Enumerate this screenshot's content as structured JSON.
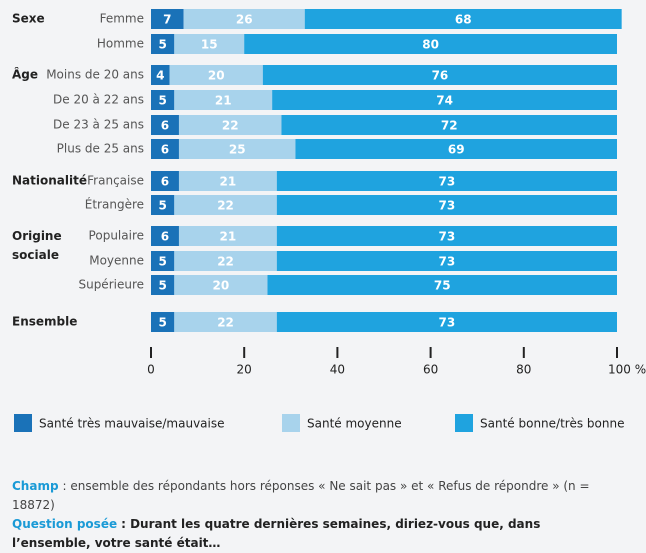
{
  "chart_data": {
    "type": "stacked-bar-horizontal",
    "groups": [
      {
        "label": "Sexe",
        "categories": [
          "Femme",
          "Homme"
        ]
      },
      {
        "label": "Âge",
        "categories": [
          "Moins de 20 ans",
          "De 20 à 22 ans",
          "De 23 à 25 ans",
          "Plus de 25 ans"
        ]
      },
      {
        "label": "Nationalité",
        "categories": [
          "Française",
          "Étrangère"
        ]
      },
      {
        "label": "Origine sociale",
        "categories": [
          "Populaire",
          "Moyenne",
          "Supérieure"
        ]
      },
      {
        "label": "Ensemble",
        "categories": [
          null
        ]
      }
    ],
    "series": [
      {
        "name": "Santé très mauvaise/mauvaise",
        "color": "#1a72b8",
        "values": [
          7,
          5,
          4,
          5,
          6,
          6,
          6,
          5,
          6,
          5,
          5,
          5
        ]
      },
      {
        "name": "Santé moyenne",
        "color": "#a8d3ec",
        "values": [
          26,
          15,
          20,
          21,
          22,
          25,
          21,
          22,
          21,
          22,
          20,
          22
        ]
      },
      {
        "name": "Santé bonne/très bonne",
        "color": "#1fa3df",
        "values": [
          68,
          80,
          76,
          74,
          72,
          69,
          73,
          73,
          73,
          73,
          75,
          73
        ]
      }
    ],
    "xlim": [
      0,
      100
    ],
    "xticks": [
      0,
      20,
      40,
      60,
      80,
      {
        "value": 100,
        "label": "100 %"
      }
    ],
    "notes": [
      {
        "label": "Champ",
        "text": ": ensemble des répondants hors réponses « Ne sait pas » et « Refus de répondre » (n = 18872)"
      },
      {
        "label": "Question posée",
        "text": ": Durant les quatre dernières semaines, diriez-vous que, dans l’ensemble, votre santé était…"
      }
    ]
  }
}
